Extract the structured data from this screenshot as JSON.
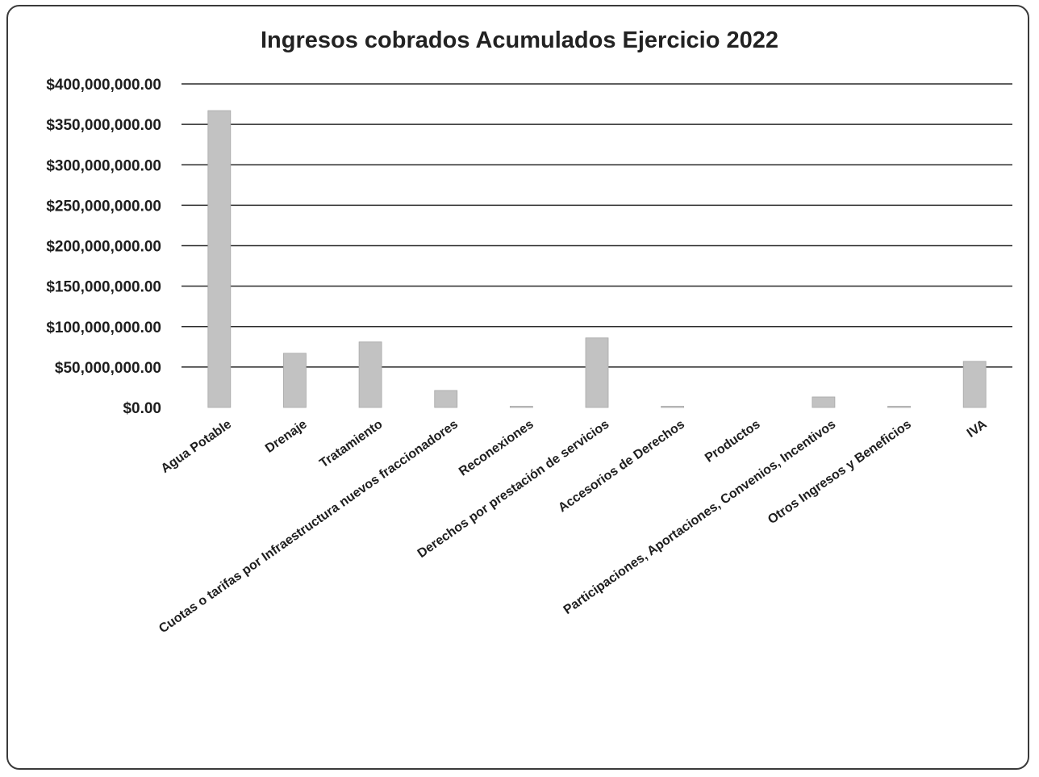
{
  "chart_data": {
    "type": "bar",
    "title": "Ingresos cobrados Acumulados Ejercicio 2022",
    "xlabel": "",
    "ylabel": "",
    "ylim": [
      0,
      400000000
    ],
    "yticks": [
      0,
      50000000,
      100000000,
      150000000,
      200000000,
      250000000,
      300000000,
      350000000,
      400000000
    ],
    "ytick_labels": [
      "$0.00",
      "$50,000,000.00",
      "$100,000,000.00",
      "$150,000,000.00",
      "$200,000,000.00",
      "$250,000,000.00",
      "$300,000,000.00",
      "$350,000,000.00",
      "$400,000,000.00"
    ],
    "categories": [
      "Agua Potable",
      "Drenaje",
      "Tratamiento",
      "Cuotas o tarifas por Infraestructura nuevos fraccionadores",
      "Reconexiones",
      "Derechos por prestación de servicios",
      "Accesorios de Derechos",
      "Productos",
      "Participaciones, Aportaciones, Convenios, Incentivos",
      "Otros Ingresos y Beneficios",
      "IVA"
    ],
    "values": [
      367000000,
      67000000,
      81000000,
      21000000,
      1000000,
      86000000,
      1000000,
      0,
      13000000,
      500000,
      57000000
    ],
    "grid": true,
    "legend": "none",
    "bar_color": "#c2c2c2",
    "grid_color": "#2a2a2a"
  }
}
